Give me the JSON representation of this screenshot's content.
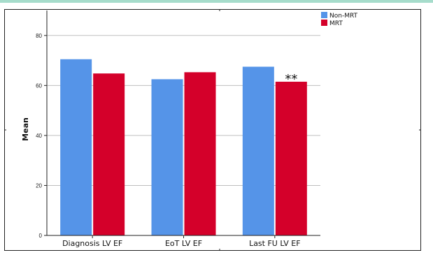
{
  "colors": {
    "non_mrt": "#5594e8",
    "mrt": "#d4002a",
    "grid": "#bfbfbf",
    "axis": "#222222",
    "top_strip": "#a6dccb"
  },
  "chart_data": {
    "type": "bar",
    "title": "",
    "xlabel": "",
    "ylabel": "Mean",
    "categories": [
      "Diagnosis LV EF",
      "EoT LV EF",
      "Last FU LV EF"
    ],
    "series": [
      {
        "name": "Non-MRT",
        "color": "#5594e8",
        "values": [
          70.5,
          62.5,
          67.5
        ]
      },
      {
        "name": "MRT",
        "color": "#d4002a",
        "values": [
          64.8,
          65.3,
          61.5
        ]
      }
    ],
    "ylim": [
      0,
      90
    ],
    "yticks": [
      0,
      20,
      40,
      60,
      80
    ],
    "grid": true,
    "legend_position": "top-right",
    "annotations": [
      {
        "text": "**",
        "category_index": 2,
        "series_index": 1
      }
    ]
  }
}
